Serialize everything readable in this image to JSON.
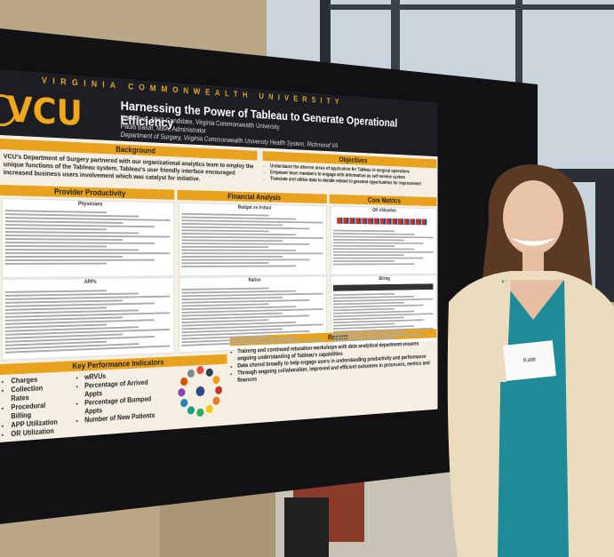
{
  "poster": {
    "university": "VIRGINIA COMMONWEALTH UNIVERSITY",
    "logo": "VCU",
    "title": "Harnessing the Power of Tableau to Generate Operational Efficiency",
    "authors": [
      "Katie Best, MHA Candidate, Virginia Commonwealth University",
      "Paula Basar, MBA, Administrator",
      "Department of Surgery, Virginia Commonwealth University Health System, Richmond VA"
    ],
    "background": {
      "heading": "Background",
      "text": "VCU's Department of Surgery partnered with our organizational analytics team to employ the unique functions of the Tableau system. Tableau's user friendly interface encouraged increased business users involvement which was catalyst for initiative."
    },
    "objectives": {
      "heading": "Objectives",
      "items": [
        "Understand the diverse areas of application for Tableau in surgical operations",
        "Empower team members to engage with information as self-service system",
        "Translate and utilize data to decide related to greatest opportunities for improvement"
      ]
    },
    "provider_productivity": {
      "heading": "Provider Productivity",
      "panels": [
        "Physicians",
        "APPs"
      ]
    },
    "financial_analysis": {
      "heading": "Financial Analysis",
      "panels": [
        "Budget vs Actual",
        "Ratios"
      ]
    },
    "core_metrics": {
      "heading": "Core Metrics",
      "panels": [
        "OR Utilization",
        "Billing"
      ]
    },
    "kpi": {
      "heading": "Key Performance Indicators",
      "items": [
        "Charges",
        "Collection Rates",
        "Procedural Billing",
        "APP Utilization",
        "OR Utilization",
        "wRVUs",
        "Percentage of Arrived Appts",
        "Percentage of Bumped Appts",
        "Number of New Patients"
      ]
    },
    "results": {
      "heading": "Results",
      "items": [
        "Training and continued education workshops with data analytical department ensures ongoing understanding of Tableau's capabilities",
        "Data shared broadly to help engage users in understanding productivity and performance",
        "Through ongoing collaboration, improved and efficient outcomes in processes, metrics and finances"
      ]
    }
  },
  "name_tag": "Kate"
}
